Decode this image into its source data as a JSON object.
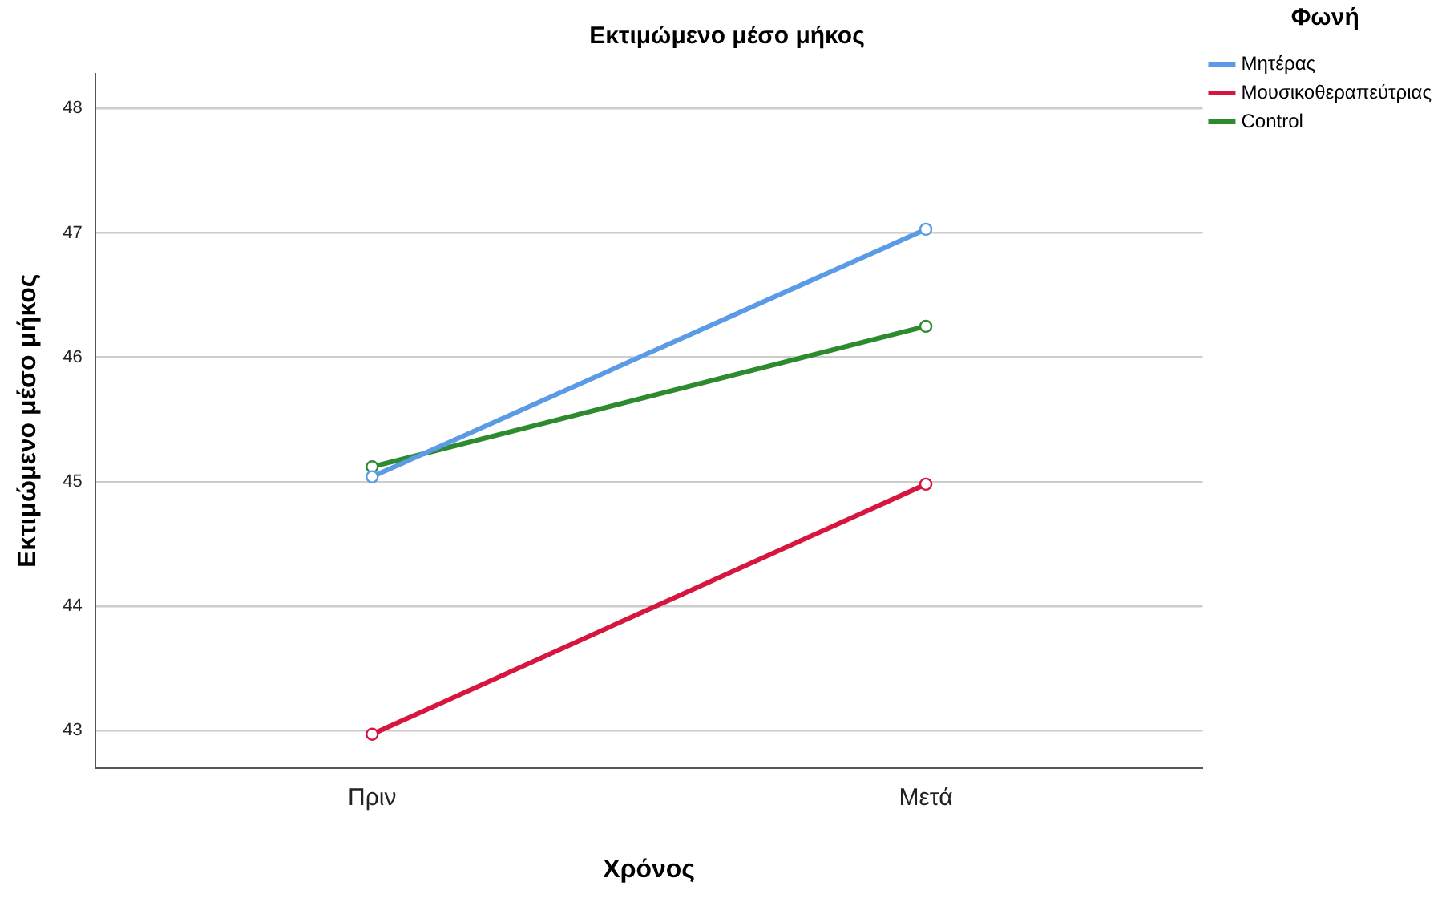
{
  "chart_data": {
    "type": "line",
    "title": "Εκτιμώμενο μέσο μήκος",
    "xlabel": "Χρόνος",
    "ylabel": "Εκτιμώμενο μέσο μήκος",
    "legend_title": "Φωνή",
    "categories": [
      "Πριν",
      "Μετά"
    ],
    "series": [
      {
        "name": "Μητέρας",
        "color": "#5b9be6",
        "values": [
          45.04,
          47.03
        ]
      },
      {
        "name": "Μουσικοθεραπεύτριας",
        "color": "#d6163e",
        "values": [
          42.97,
          44.98
        ]
      },
      {
        "name": "Control",
        "color": "#2e8a2e",
        "values": [
          45.12,
          46.25
        ]
      }
    ],
    "ylim": [
      42.7,
      48.28
    ],
    "yticks": [
      43,
      44,
      45,
      46,
      47,
      48
    ],
    "grid": "y",
    "legend": "right",
    "marker": "circle",
    "line_style": "solid"
  }
}
